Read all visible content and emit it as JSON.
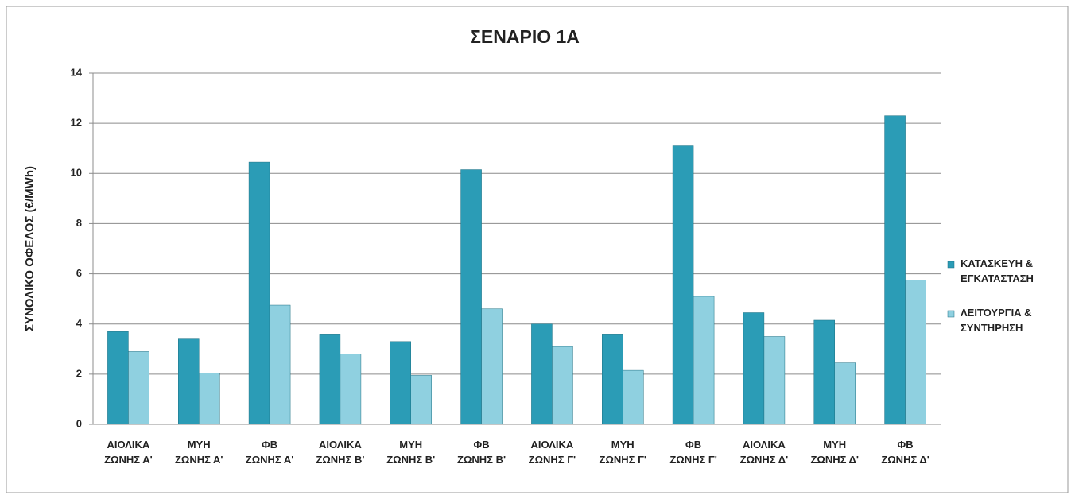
{
  "chart_data": {
    "type": "bar",
    "title": "ΣΕΝΑΡΙΟ 1Α",
    "y_label": "ΣΥΝΟΛΙΚΟ ΟΦΕΛΟΣ (€/MWh)",
    "categories": [
      "ΑΙΟΛΙΚΑ\nΖΩΝΗΣ Α'",
      "ΜΥΗ\nΖΩΝΗΣ Α'",
      "ΦΒ\nΖΩΝΗΣ Α'",
      "ΑΙΟΛΙΚΑ\nΖΩΝΗΣ Β'",
      "ΜΥΗ\nΖΩΝΗΣ Β'",
      "ΦΒ\nΖΩΝΗΣ Β'",
      "ΑΙΟΛΙΚΑ\nΖΩΝΗΣ Γ'",
      "ΜΥΗ\nΖΩΝΗΣ Γ'",
      "ΦΒ\nΖΩΝΗΣ Γ'",
      "ΑΙΟΛΙΚΑ\nΖΩΝΗΣ Δ'",
      "ΜΥΗ\nΖΩΝΗΣ Δ'",
      "ΦΒ\nΖΩΝΗΣ Δ'"
    ],
    "series": [
      {
        "name": "ΚΑΤΑΣΚΕΥΗ &\nΕΓΚΑΤΑΣΤΑΣΗ",
        "color": "#2b9cb6",
        "values": [
          3.7,
          3.4,
          10.45,
          3.6,
          3.3,
          10.15,
          4.0,
          3.6,
          11.1,
          4.45,
          4.15,
          12.3
        ]
      },
      {
        "name": "ΛΕΙΤΟΥΡΓΙΑ &\nΣΥΝΤΗΡΗΣΗ",
        "color": "#8fd0e0",
        "values": [
          2.9,
          2.05,
          4.75,
          2.8,
          1.95,
          4.6,
          3.1,
          2.15,
          5.1,
          3.5,
          2.45,
          5.75
        ]
      }
    ],
    "ylim": [
      0,
      14
    ],
    "yticks": [
      0,
      2,
      4,
      6,
      8,
      10,
      12,
      14
    ],
    "grid": true,
    "legend": "right"
  }
}
